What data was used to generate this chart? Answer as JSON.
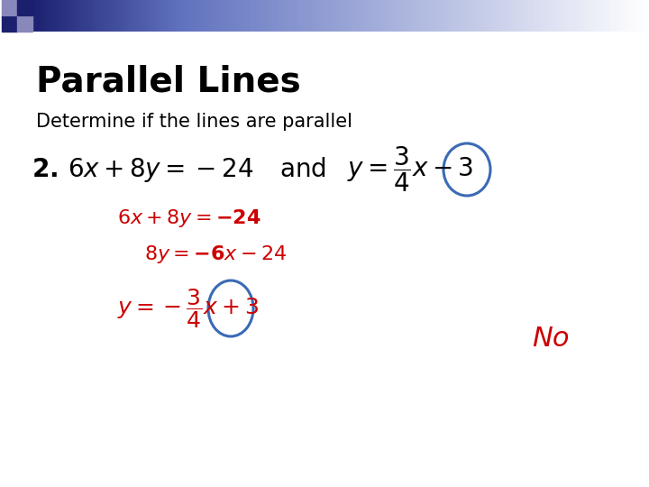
{
  "title": "Parallel Lines",
  "subtitle": "Determine if the lines are parallel",
  "background_color": "#ffffff",
  "title_color": "#000000",
  "subtitle_color": "#000000",
  "red_color": "#cc0000",
  "blue_circle_color": "#3a6ab5",
  "no_text": "No",
  "figsize": [
    7.2,
    5.4
  ],
  "dpi": 100,
  "header_dark": "#1a1f6e",
  "header_mid": "#7080c0",
  "tile_dark": "#1a1f6e",
  "tile_light": "#8888bb"
}
